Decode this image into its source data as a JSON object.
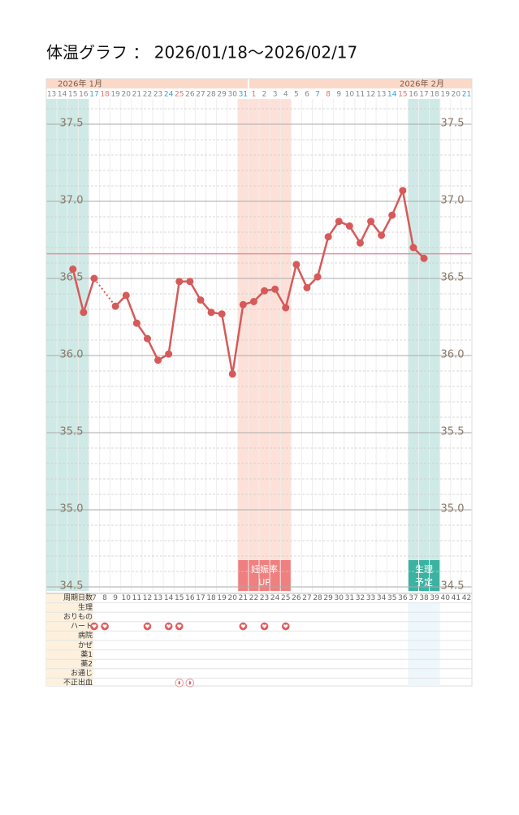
{
  "title": "体温グラフ ： 2026/01/18～2026/02/17",
  "chart_data": {
    "type": "line",
    "months": [
      "2026年 1月",
      "2026年 2月"
    ],
    "categories": [
      "13",
      "14",
      "15",
      "16",
      "17",
      "18",
      "19",
      "20",
      "21",
      "22",
      "23",
      "24",
      "25",
      "26",
      "27",
      "28",
      "29",
      "30",
      "31",
      "1",
      "2",
      "3",
      "4",
      "5",
      "6",
      "7",
      "8",
      "9",
      "10",
      "11",
      "12",
      "13",
      "14",
      "15",
      "16",
      "17",
      "18",
      "19",
      "20",
      "21"
    ],
    "values": [
      null,
      null,
      36.56,
      36.28,
      36.5,
      null,
      36.32,
      36.39,
      36.21,
      36.11,
      35.97,
      36.01,
      36.48,
      36.48,
      36.36,
      36.28,
      36.27,
      35.88,
      36.33,
      36.35,
      36.42,
      36.43,
      36.31,
      36.59,
      36.44,
      36.51,
      36.77,
      36.87,
      36.84,
      36.73,
      36.87,
      36.78,
      36.91,
      37.07,
      36.7,
      36.63,
      null,
      null,
      null,
      null
    ],
    "color": "#d65a5a",
    "ylim": [
      34.5,
      37.65
    ],
    "yticks": [
      {
        "value": 34.5,
        "label": "34.5"
      },
      {
        "value": 35,
        "label": "35.0"
      },
      35.5,
      {
        "value": 36,
        "label": "36.0"
      },
      36.5,
      {
        "value": 37,
        "label": "37.0"
      },
      37.5
    ],
    "minor_yticks": [
      34.6,
      34.7,
      34.8,
      34.9,
      35.1,
      35.2,
      35.3,
      35.4,
      35.6,
      35.7,
      35.8,
      35.9,
      36.1,
      36.2,
      36.3,
      36.4,
      36.6,
      36.7,
      36.8,
      36.9,
      37.1,
      37.2,
      37.3,
      37.4,
      37.6
    ],
    "reference_line": 36.66,
    "reference_color": "#e58fa0",
    "bands": [
      {
        "label": [
          "妊娠率",
          "UP"
        ],
        "color": "#fde1d9",
        "box_color": "#f07f7f"
      },
      {
        "label": [
          "生理",
          "予定"
        ],
        "color": "#cfeae6",
        "box_color": "#3bb3a3"
      }
    ],
    "period_band_color": "#cfeae6"
  },
  "table": {
    "cycle_label": "周期日数",
    "cycle_days": [
      7,
      8,
      9,
      10,
      11,
      12,
      13,
      14,
      15,
      16,
      17,
      18,
      19,
      20,
      21,
      22,
      23,
      24,
      25,
      26,
      27,
      28,
      29,
      30,
      31,
      32,
      33,
      34,
      35,
      36,
      37,
      38,
      39,
      40,
      41,
      42
    ],
    "rows": [
      "生理",
      "おりもの",
      "ハート",
      "病院",
      "かぜ",
      "薬1",
      "薬2",
      "お通じ",
      "不正出血"
    ],
    "heart_days": [
      7,
      8,
      12,
      14,
      15,
      21,
      23,
      25
    ],
    "bleeding_days": [
      15,
      16
    ]
  }
}
